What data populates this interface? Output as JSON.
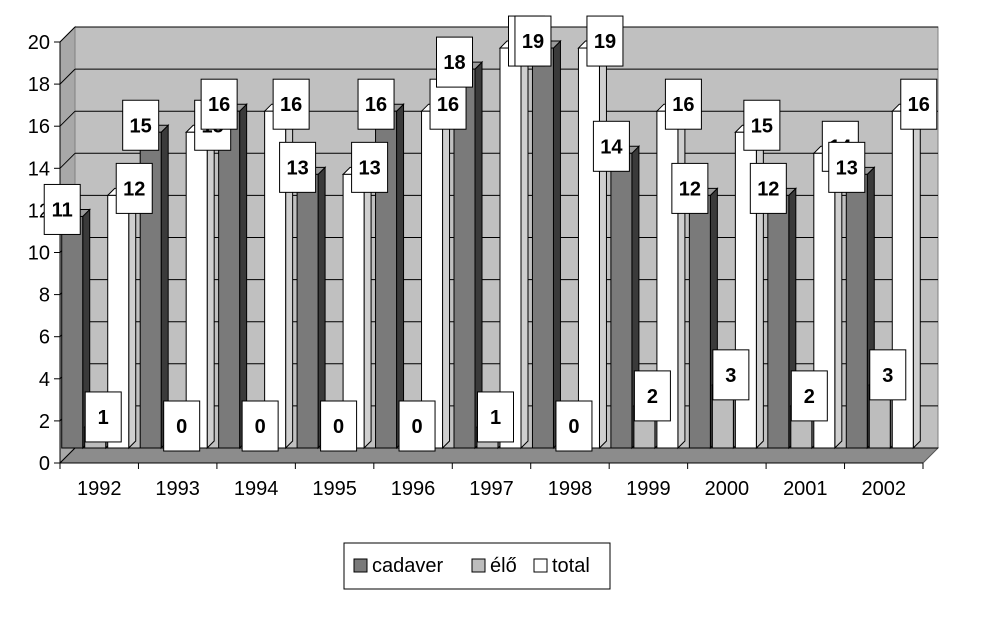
{
  "chart_data": {
    "type": "bar",
    "title": "",
    "xlabel": "",
    "ylabel": "",
    "categories": [
      "1992",
      "1993",
      "1994",
      "1995",
      "1996",
      "1997",
      "1998",
      "1999",
      "2000",
      "2001",
      "2002"
    ],
    "series": [
      {
        "name": "cadaver",
        "color": "#7a7a7a",
        "values": [
          11,
          15,
          16,
          13,
          16,
          18,
          19,
          14,
          12,
          12,
          13
        ]
      },
      {
        "name": "élő",
        "color": "#bdbdbd",
        "values": [
          1,
          0,
          0,
          0,
          0,
          1,
          0,
          2,
          3,
          2,
          3
        ]
      },
      {
        "name": "total",
        "color": "#ffffff",
        "values": [
          12,
          15,
          16,
          13,
          16,
          19,
          19,
          16,
          15,
          14,
          16
        ]
      }
    ],
    "ylim": [
      0,
      20
    ],
    "yticks": [
      0,
      2,
      4,
      6,
      8,
      10,
      12,
      14,
      16,
      18,
      20
    ],
    "grid": true,
    "legend_position": "bottom",
    "plot_background": "#c0c0c0"
  }
}
